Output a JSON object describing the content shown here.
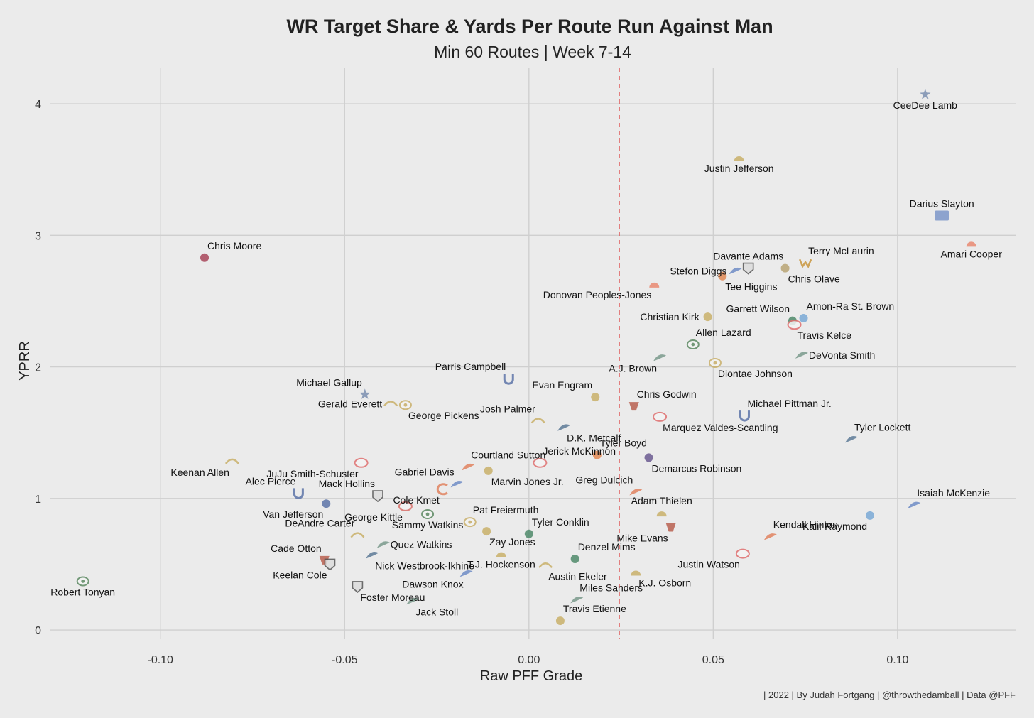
{
  "chart_data": {
    "type": "scatter",
    "title": "WR Target Share & Yards Per Route Run Against Man",
    "subtitle": "Min 60 Routes | Week 7-14",
    "xlabel": "Raw PFF Grade",
    "ylabel": "YPRR",
    "caption": "| 2022 | By Judah Fortgang | @throwthedamball | Data @PFF",
    "xlim": [
      -0.13,
      0.132
    ],
    "ylim": [
      -0.07,
      4.27
    ],
    "x_ticks": [
      -0.1,
      -0.05,
      0.0,
      0.05,
      0.1
    ],
    "x_tick_labels": [
      "-0.10",
      "-0.05",
      "0.00",
      "0.05",
      "0.10"
    ],
    "y_ticks": [
      0,
      1,
      2,
      3,
      4
    ],
    "y_tick_labels": [
      "0",
      "1",
      "2",
      "3",
      "4"
    ],
    "grid": true,
    "reference_line": {
      "axis": "x",
      "value": 0.0245,
      "style": "dashed",
      "color": "#e06060"
    },
    "points": [
      {
        "label": "CeeDee Lamb",
        "team": "DAL",
        "x": 0.1075,
        "y": 4.07,
        "color": "#7b8fb0",
        "marker": "star-icon",
        "label_pos": "below"
      },
      {
        "label": "Justin Jefferson",
        "team": "MIN",
        "x": 0.057,
        "y": 3.59,
        "color": "#c9b06a",
        "marker": "helmet-icon",
        "label_pos": "below"
      },
      {
        "label": "Darius Slayton",
        "team": "NYG",
        "x": 0.112,
        "y": 3.15,
        "color": "#7d97c9",
        "marker": "ny-icon",
        "label_pos": "above"
      },
      {
        "label": "Amari Cooper",
        "team": "CLE",
        "x": 0.12,
        "y": 2.94,
        "color": "#e98a72",
        "marker": "helmet-icon",
        "label_pos": "below"
      },
      {
        "label": "Chris Moore",
        "team": "HOU",
        "x": -0.088,
        "y": 2.83,
        "color": "#a8465a",
        "marker": "bull-icon",
        "label_pos": "above-right"
      },
      {
        "label": "Terry McLaurin",
        "team": "WAS",
        "x": 0.075,
        "y": 2.79,
        "color": "#c9963e",
        "marker": "w-icon",
        "label_pos": "above-right"
      },
      {
        "label": "Davante Adams",
        "team": "LV",
        "x": 0.0595,
        "y": 2.75,
        "color": "#777777",
        "marker": "shield-icon",
        "label_pos": "above"
      },
      {
        "label": "Chris Olave",
        "team": "NO",
        "x": 0.0695,
        "y": 2.75,
        "color": "#b9a574",
        "marker": "fleur-icon",
        "label_pos": "below-right"
      },
      {
        "label": "Stefon Diggs",
        "team": "BUF",
        "x": 0.056,
        "y": 2.73,
        "color": "#6e8cc6",
        "marker": "bison-icon",
        "label_pos": "left"
      },
      {
        "label": "Tee Higgins",
        "team": "CIN",
        "x": 0.0525,
        "y": 2.69,
        "color": "#e28a55",
        "marker": "b-icon",
        "label_pos": "below-right"
      },
      {
        "label": "Donovan Peoples-Jones",
        "team": "CLE",
        "x": 0.034,
        "y": 2.63,
        "color": "#e98a72",
        "marker": "helmet-icon",
        "label_pos": "below-left"
      },
      {
        "label": "Christian Kirk",
        "team": "JAX",
        "x": 0.0485,
        "y": 2.38,
        "color": "#c9b06a",
        "marker": "jaguar-icon",
        "label_pos": "left"
      },
      {
        "label": "Amon-Ra St. Brown",
        "team": "DET",
        "x": 0.0745,
        "y": 2.37,
        "color": "#7aa9d6",
        "marker": "lion-icon",
        "label_pos": "above-right"
      },
      {
        "label": "Garrett Wilson",
        "team": "NYJ",
        "x": 0.0715,
        "y": 2.35,
        "color": "#4f8a6a",
        "marker": "jets-icon",
        "label_pos": "above-left"
      },
      {
        "label": "Travis Kelce",
        "team": "KC",
        "x": 0.072,
        "y": 2.32,
        "color": "#e07070",
        "marker": "arrowhead-icon",
        "label_pos": "below-right"
      },
      {
        "label": "Allen Lazard",
        "team": "GB",
        "x": 0.0445,
        "y": 2.17,
        "color": "#5e8a63",
        "marker": "g-icon",
        "label_pos": "above-right"
      },
      {
        "label": "DeVonta Smith",
        "team": "PHI",
        "x": 0.074,
        "y": 2.09,
        "color": "#7a9a8c",
        "marker": "eagle-icon",
        "label_pos": "right"
      },
      {
        "label": "A.J. Brown",
        "team": "PHI",
        "x": 0.0355,
        "y": 2.07,
        "color": "#7a9a8c",
        "marker": "eagle-icon",
        "label_pos": "below-left"
      },
      {
        "label": "Diontae Johnson",
        "team": "PIT",
        "x": 0.0505,
        "y": 2.03,
        "color": "#c9b06a",
        "marker": "steeler-icon",
        "label_pos": "below-right"
      },
      {
        "label": "Parris Campbell",
        "team": "IND",
        "x": -0.0055,
        "y": 1.91,
        "color": "#5d74a8",
        "marker": "horseshoe-icon",
        "label_pos": "above-left"
      },
      {
        "label": "Michael Gallup",
        "team": "DAL",
        "x": -0.0445,
        "y": 1.79,
        "color": "#7b8fb0",
        "marker": "star-icon",
        "label_pos": "above-left"
      },
      {
        "label": "Evan Engram",
        "team": "JAX",
        "x": 0.018,
        "y": 1.77,
        "color": "#c9b06a",
        "marker": "jaguar-icon",
        "label_pos": "above-left"
      },
      {
        "label": "Gerald Everett",
        "team": "LAC",
        "x": -0.0375,
        "y": 1.72,
        "color": "#c9b06a",
        "marker": "bolt-icon",
        "label_pos": "left"
      },
      {
        "label": "George Pickens",
        "team": "PIT",
        "x": -0.0335,
        "y": 1.71,
        "color": "#c9b06a",
        "marker": "steeler-icon",
        "label_pos": "below-right"
      },
      {
        "label": "Chris Godwin",
        "team": "TB",
        "x": 0.0285,
        "y": 1.7,
        "color": "#b86050",
        "marker": "flag-icon",
        "label_pos": "above-right"
      },
      {
        "label": "Michael Pittman Jr.",
        "team": "IND",
        "x": 0.0585,
        "y": 1.63,
        "color": "#5d74a8",
        "marker": "horseshoe-icon",
        "label_pos": "above-right"
      },
      {
        "label": "Marquez Valdes-Scantling",
        "team": "KC",
        "x": 0.0355,
        "y": 1.62,
        "color": "#e07070",
        "marker": "arrowhead-icon",
        "label_pos": "below-right"
      },
      {
        "label": "Josh Palmer",
        "team": "LAC",
        "x": 0.0025,
        "y": 1.59,
        "color": "#c9b06a",
        "marker": "bolt-icon",
        "label_pos": "above-left"
      },
      {
        "label": "D.K. Metcalf",
        "team": "SEA",
        "x": 0.0095,
        "y": 1.54,
        "color": "#5d7a96",
        "marker": "seahawk-icon",
        "label_pos": "below-right"
      },
      {
        "label": "Tyler Lockett",
        "team": "SEA",
        "x": 0.0875,
        "y": 1.45,
        "color": "#5d7a96",
        "marker": "seahawk-icon",
        "label_pos": "above-right"
      },
      {
        "label": "Jerick McKinnon",
        "team": "KC",
        "x": 0.003,
        "y": 1.27,
        "color": "#e07070",
        "marker": "arrowhead-icon",
        "label_pos": "above-right"
      },
      {
        "label": "Tyler Boyd",
        "team": "CIN",
        "x": 0.0185,
        "y": 1.33,
        "color": "#e28a55",
        "marker": "b-icon",
        "label_pos": "above-right"
      },
      {
        "label": "Demarcus Robinson",
        "team": "BAL",
        "x": 0.0325,
        "y": 1.31,
        "color": "#6b5a90",
        "marker": "raven-icon",
        "label_pos": "below-right"
      },
      {
        "label": "Keenan Allen",
        "team": "LAC",
        "x": -0.0805,
        "y": 1.28,
        "color": "#c9b06a",
        "marker": "bolt-icon",
        "label_pos": "below-left"
      },
      {
        "label": "JuJu Smith-Schuster",
        "team": "KC",
        "x": -0.0455,
        "y": 1.27,
        "color": "#e07070",
        "marker": "arrowhead-icon",
        "label_pos": "below-left"
      },
      {
        "label": "Courtland Sutton",
        "team": "DEN",
        "x": -0.0165,
        "y": 1.24,
        "color": "#e0825f",
        "marker": "bronco-icon",
        "label_pos": "above-right"
      },
      {
        "label": "Marvin Jones Jr.",
        "team": "JAX",
        "x": -0.011,
        "y": 1.21,
        "color": "#c9b06a",
        "marker": "jaguar-icon",
        "label_pos": "below-right"
      },
      {
        "label": "Gabriel Davis",
        "team": "BUF",
        "x": -0.0195,
        "y": 1.11,
        "color": "#6e8cc6",
        "marker": "bison-icon",
        "label_pos": "above-left"
      },
      {
        "label": "Greg Dulcich",
        "team": "DEN",
        "x": 0.029,
        "y": 1.05,
        "color": "#e0825f",
        "marker": "bronco-icon",
        "label_pos": "above-left"
      },
      {
        "label": "Cole Kmet",
        "team": "CHI",
        "x": -0.0235,
        "y": 1.07,
        "color": "#e0825f",
        "marker": "c-icon",
        "label_pos": "below-left"
      },
      {
        "label": "Mack Hollins",
        "team": "LV",
        "x": -0.041,
        "y": 1.02,
        "color": "#777777",
        "marker": "shield-icon",
        "label_pos": "above-left"
      },
      {
        "label": "Alec Pierce",
        "team": "IND",
        "x": -0.0625,
        "y": 1.04,
        "color": "#5d74a8",
        "marker": "horseshoe-icon",
        "label_pos": "above-left"
      },
      {
        "label": "Isaiah McKenzie",
        "team": "BUF",
        "x": 0.1045,
        "y": 0.95,
        "color": "#6e8cc6",
        "marker": "bison-icon",
        "label_pos": "above-right"
      },
      {
        "label": "Van Jefferson",
        "team": "LAR",
        "x": -0.055,
        "y": 0.96,
        "color": "#5d74a8",
        "marker": "ram-icon",
        "label_pos": "below-left"
      },
      {
        "label": "George Kittle",
        "team": "SF",
        "x": -0.0335,
        "y": 0.94,
        "color": "#d9706a",
        "marker": "sf-icon",
        "label_pos": "below-left"
      },
      {
        "label": "Adam Thielen",
        "team": "MIN",
        "x": 0.036,
        "y": 0.89,
        "color": "#c9b06a",
        "marker": "helmet-icon",
        "label_pos": "above"
      },
      {
        "label": "Kalif Raymond",
        "team": "DET",
        "x": 0.0925,
        "y": 0.87,
        "color": "#7aa9d6",
        "marker": "lion-icon",
        "label_pos": "below-left"
      },
      {
        "label": "Pat Freiermuth",
        "team": "PIT",
        "x": -0.016,
        "y": 0.82,
        "color": "#c9b06a",
        "marker": "steeler-icon",
        "label_pos": "above-right"
      },
      {
        "label": "Sammy Watkins",
        "team": "GB",
        "x": -0.0275,
        "y": 0.88,
        "color": "#5e8a63",
        "marker": "g-icon",
        "label_pos": "below"
      },
      {
        "label": "Mike Evans",
        "team": "TB",
        "x": 0.0385,
        "y": 0.78,
        "color": "#b86050",
        "marker": "flag-icon",
        "label_pos": "below-left"
      },
      {
        "label": "Tyler Conklin",
        "team": "NYJ",
        "x": 0.0,
        "y": 0.73,
        "color": "#4f8a6a",
        "marker": "jets-icon",
        "label_pos": "above-right"
      },
      {
        "label": "Kendall Hinton",
        "team": "DEN",
        "x": 0.0655,
        "y": 0.71,
        "color": "#e0825f",
        "marker": "bronco-icon",
        "label_pos": "above-right"
      },
      {
        "label": "DeAndre Carter",
        "team": "LAC",
        "x": -0.0465,
        "y": 0.72,
        "color": "#c9b06a",
        "marker": "bolt-icon",
        "label_pos": "above-left"
      },
      {
        "label": "Zay Jones",
        "team": "JAX",
        "x": -0.0115,
        "y": 0.75,
        "color": "#c9b06a",
        "marker": "jaguar-icon",
        "label_pos": "below-right"
      },
      {
        "label": "Quez Watkins",
        "team": "PHI",
        "x": -0.0395,
        "y": 0.65,
        "color": "#7a9a8c",
        "marker": "eagle-icon",
        "label_pos": "right"
      },
      {
        "label": "T.J. Hockenson",
        "team": "MIN",
        "x": -0.0075,
        "y": 0.58,
        "color": "#c9b06a",
        "marker": "helmet-icon",
        "label_pos": "below"
      },
      {
        "label": "Denzel Mims",
        "team": "NYJ",
        "x": 0.0125,
        "y": 0.54,
        "color": "#4f8a6a",
        "marker": "jets-icon",
        "label_pos": "above-right"
      },
      {
        "label": "Justin Watson",
        "team": "KC",
        "x": 0.058,
        "y": 0.58,
        "color": "#e07070",
        "marker": "arrowhead-icon",
        "label_pos": "below-left"
      },
      {
        "label": "Nick Westbrook-Ikhine",
        "team": "TEN",
        "x": -0.0425,
        "y": 0.57,
        "color": "#5d7a96",
        "marker": "titan-icon",
        "label_pos": "below-right"
      },
      {
        "label": "Cade Otton",
        "team": "TB",
        "x": -0.0555,
        "y": 0.53,
        "color": "#b86050",
        "marker": "flag-icon",
        "label_pos": "above-left"
      },
      {
        "label": "Keelan Cole",
        "team": "LV",
        "x": -0.054,
        "y": 0.5,
        "color": "#777777",
        "marker": "shield-icon",
        "label_pos": "below-left"
      },
      {
        "label": "Austin Ekeler",
        "team": "LAC",
        "x": 0.0045,
        "y": 0.49,
        "color": "#c9b06a",
        "marker": "bolt-icon",
        "label_pos": "below-right"
      },
      {
        "label": "K.J. Osborn",
        "team": "MIN",
        "x": 0.029,
        "y": 0.44,
        "color": "#c9b06a",
        "marker": "helmet-icon",
        "label_pos": "below-right"
      },
      {
        "label": "Dawson Knox",
        "team": "BUF",
        "x": -0.017,
        "y": 0.43,
        "color": "#6e8cc6",
        "marker": "bison-icon",
        "label_pos": "below-left"
      },
      {
        "label": "Robert Tonyan",
        "team": "GB",
        "x": -0.121,
        "y": 0.37,
        "color": "#5e8a63",
        "marker": "g-icon",
        "label_pos": "below"
      },
      {
        "label": "Foster Moreau",
        "team": "LV",
        "x": -0.0465,
        "y": 0.33,
        "color": "#777777",
        "marker": "shield-icon",
        "label_pos": "below-right"
      },
      {
        "label": "Miles Sanders",
        "team": "PHI",
        "x": 0.013,
        "y": 0.23,
        "color": "#7a9a8c",
        "marker": "eagle-icon",
        "label_pos": "above-right"
      },
      {
        "label": "Jack Stoll",
        "team": "PHI",
        "x": -0.0315,
        "y": 0.22,
        "color": "#7a9a8c",
        "marker": "eagle-icon",
        "label_pos": "below-right"
      },
      {
        "label": "Travis Etienne",
        "team": "JAX",
        "x": 0.0085,
        "y": 0.07,
        "color": "#c9b06a",
        "marker": "jaguar-icon",
        "label_pos": "above-right"
      }
    ]
  }
}
